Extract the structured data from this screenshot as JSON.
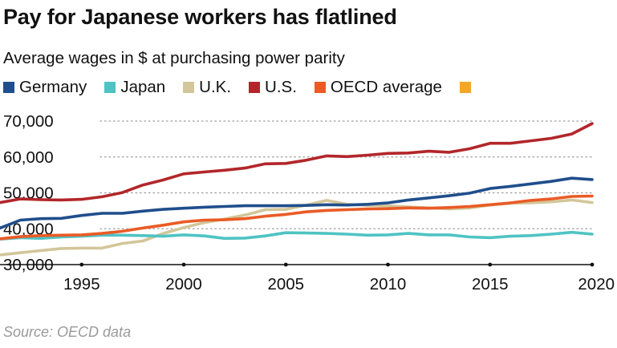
{
  "header": {
    "title": "Pay for Japanese workers has flatlined",
    "subtitle": "Average wages in $ at purchasing power parity"
  },
  "footer": {
    "source": "Source: OECD data"
  },
  "chart_data": {
    "type": "line",
    "title": "Pay for Japanese workers has flatlined",
    "subtitle": "Average wages in $ at purchasing power parity",
    "xlabel": "",
    "ylabel": "",
    "xlim": [
      1991,
      2020
    ],
    "ylim": [
      30000,
      70000
    ],
    "x_ticks": [
      1995,
      2000,
      2005,
      2010,
      2015,
      2020
    ],
    "y_ticks": [
      {
        "value": 30000,
        "label": "30,000"
      },
      {
        "value": 40000,
        "label": "40,000"
      },
      {
        "value": 50000,
        "label": "50,000"
      },
      {
        "value": 60000,
        "label": "60,000"
      },
      {
        "value": 70000,
        "label": "70,000"
      }
    ],
    "grid": "horizontal dotted",
    "legend_position": "top",
    "legend": [
      {
        "name": "Germany",
        "color": "#1f4e8c"
      },
      {
        "name": "Japan",
        "color": "#4fc3c3"
      },
      {
        "name": "U.K.",
        "color": "#d2c69a"
      },
      {
        "name": "U.S.",
        "color": "#b2262a"
      },
      {
        "name": "OECD average",
        "color": "#ea5b25"
      },
      {
        "name": "",
        "color": "#f5a623"
      }
    ],
    "x": [
      1991,
      1992,
      1993,
      1994,
      1995,
      1996,
      1997,
      1998,
      1999,
      2000,
      2001,
      2002,
      2003,
      2004,
      2005,
      2006,
      2007,
      2008,
      2009,
      2010,
      2011,
      2012,
      2013,
      2014,
      2015,
      2016,
      2017,
      2018,
      2019,
      2020
    ],
    "series": [
      {
        "name": "U.K.",
        "color": "#d2c69a",
        "values": [
          32700,
          33300,
          33900,
          34500,
          34600,
          34600,
          35900,
          36600,
          38700,
          40300,
          41700,
          42700,
          43800,
          45300,
          45400,
          46600,
          47900,
          46800,
          46500,
          46400,
          46100,
          45800,
          45500,
          45800,
          46600,
          47100,
          47200,
          47500,
          48000,
          47300
        ]
      },
      {
        "name": "Japan",
        "color": "#4fc3c3",
        "values": [
          37100,
          37500,
          37300,
          37700,
          37900,
          38200,
          38200,
          38100,
          37900,
          38300,
          38000,
          37300,
          37400,
          38000,
          38900,
          38800,
          38700,
          38500,
          38200,
          38300,
          38700,
          38300,
          38300,
          37700,
          37500,
          37900,
          38100,
          38500,
          39000,
          38500
        ]
      },
      {
        "name": "OECD average",
        "color": "#ea5b25",
        "values": [
          37200,
          37800,
          38100,
          38200,
          38300,
          38700,
          39300,
          40200,
          41000,
          41900,
          42400,
          42500,
          42800,
          43500,
          44000,
          44700,
          45100,
          45300,
          45500,
          45600,
          45800,
          45700,
          45900,
          46200,
          46700,
          47200,
          47900,
          48300,
          49000,
          49100
        ]
      },
      {
        "name": "Germany",
        "color": "#1f4e8c",
        "values": [
          40200,
          42400,
          42800,
          42900,
          43700,
          44300,
          44300,
          44900,
          45400,
          45700,
          46000,
          46200,
          46400,
          46400,
          46400,
          46500,
          46700,
          46600,
          46800,
          47200,
          48000,
          48600,
          49200,
          49900,
          51200,
          51800,
          52500,
          53200,
          54100,
          53700
        ]
      },
      {
        "name": "U.S.",
        "color": "#b2262a",
        "values": [
          47300,
          48300,
          48100,
          48000,
          48200,
          48900,
          50100,
          52200,
          53600,
          55300,
          55800,
          56300,
          56900,
          58100,
          58200,
          59100,
          60300,
          60100,
          60500,
          61000,
          61100,
          61600,
          61300,
          62300,
          63800,
          63800,
          64500,
          65200,
          66400,
          69300
        ]
      }
    ]
  }
}
